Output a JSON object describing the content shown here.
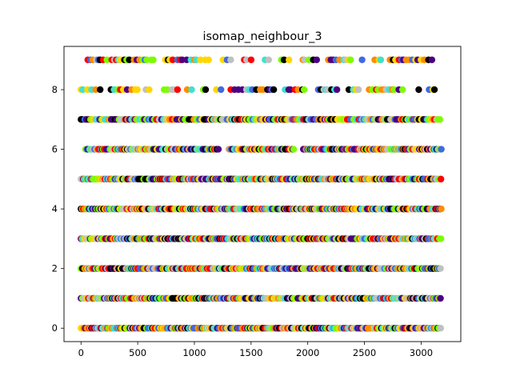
{
  "chart_data": {
    "type": "scatter",
    "title": "isomap_neighbour_3",
    "xlabel": "",
    "ylabel": "",
    "xlim": [
      -150,
      3350
    ],
    "ylim": [
      -0.45,
      9.45
    ],
    "x_ticks": [
      0,
      500,
      1000,
      1500,
      2000,
      2500,
      3000
    ],
    "y_ticks": [
      0,
      2,
      4,
      6,
      8
    ],
    "x_tick_labels": [
      "0",
      "500",
      "1000",
      "1500",
      "2000",
      "2500",
      "3000"
    ],
    "y_tick_labels": [
      "0",
      "2",
      "4",
      "6",
      "8"
    ],
    "grid": false,
    "legend": "none",
    "marker": "circle",
    "x_range": [
      0,
      3200
    ],
    "rows": [
      {
        "y": 0,
        "x_extent": [
          0,
          3180
        ],
        "density": "dense"
      },
      {
        "y": 1,
        "x_extent": [
          0,
          3180
        ],
        "density": "dense"
      },
      {
        "y": 2,
        "x_extent": [
          0,
          3180
        ],
        "density": "dense"
      },
      {
        "y": 3,
        "x_extent": [
          0,
          3180
        ],
        "density": "dense"
      },
      {
        "y": 4,
        "x_extent": [
          0,
          3180
        ],
        "density": "dense"
      },
      {
        "y": 5,
        "x_extent": [
          0,
          3180
        ],
        "density": "dense"
      },
      {
        "y": 6,
        "x_extent": [
          40,
          3180
        ],
        "density": "dense",
        "gaps": [
          [
            1220,
            1290
          ],
          [
            1880,
            1960
          ]
        ]
      },
      {
        "y": 7,
        "x_extent": [
          0,
          3180
        ],
        "density": "medium"
      },
      {
        "y": 8,
        "x_extent": [
          0,
          3180
        ],
        "density": "sparse"
      },
      {
        "y": 9,
        "x_extent": [
          60,
          3180
        ],
        "density": "sparse"
      }
    ],
    "palette": [
      "#000000",
      "#4b0082",
      "#4169e1",
      "#40e0d0",
      "#7cfc00",
      "#ffd700",
      "#ff8c00",
      "#ff0000",
      "#c0c0c0"
    ]
  }
}
